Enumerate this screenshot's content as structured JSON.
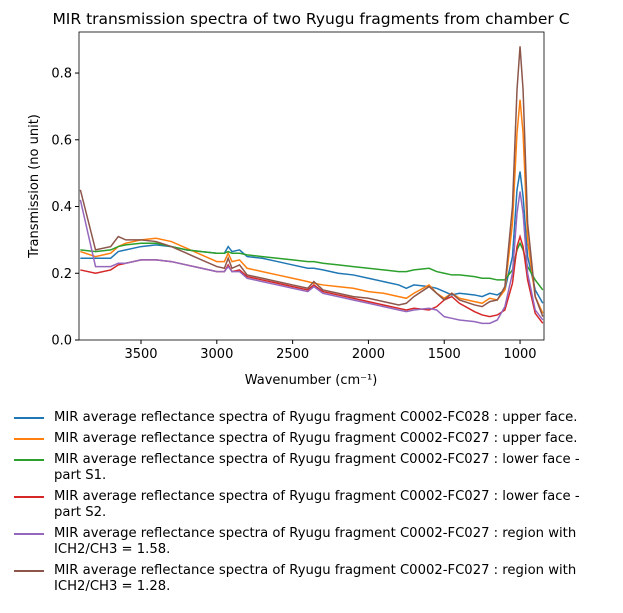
{
  "chart_data": {
    "type": "line",
    "title": "MIR transmission spectra of two Ryugu fragments from chamber C",
    "x_label": "Wavenumber (cm⁻¹)",
    "y_label": "Transmission (no unit)",
    "x": [
      3900,
      3800,
      3700,
      3650,
      3600,
      3500,
      3400,
      3300,
      3200,
      3100,
      3000,
      2950,
      2925,
      2900,
      2850,
      2800,
      2700,
      2600,
      2500,
      2400,
      2360,
      2300,
      2200,
      2100,
      2000,
      1900,
      1800,
      1750,
      1700,
      1600,
      1550,
      1500,
      1450,
      1400,
      1300,
      1250,
      1200,
      1150,
      1100,
      1050,
      1020,
      1000,
      980,
      950,
      900,
      850
    ],
    "xlim": [
      3909,
      842
    ],
    "xticks": [
      3500,
      3000,
      2500,
      2000,
      1500,
      1000
    ],
    "ylim": [
      0,
      0.923
    ],
    "yticks": [
      {
        "value": 0,
        "label": "0.0"
      },
      0.2,
      0.4,
      0.6,
      0.8
    ],
    "series": [
      {
        "name": "MIR average reflectance spectra of Ryugu fragment C0002-FC028 : upper face.",
        "color": "#1f77b4",
        "values": [
          0.245,
          0.245,
          0.245,
          0.265,
          0.27,
          0.28,
          0.285,
          0.28,
          0.27,
          0.265,
          0.26,
          0.26,
          0.28,
          0.265,
          0.27,
          0.25,
          0.245,
          0.235,
          0.225,
          0.215,
          0.215,
          0.21,
          0.2,
          0.195,
          0.185,
          0.175,
          0.165,
          0.155,
          0.165,
          0.16,
          0.155,
          0.145,
          0.135,
          0.14,
          0.135,
          0.13,
          0.14,
          0.135,
          0.15,
          0.25,
          0.45,
          0.505,
          0.43,
          0.25,
          0.15,
          0.11
        ]
      },
      {
        "name": "MIR average reflectance spectra of Ryugu fragment C0002-FC027 : upper face.",
        "color": "#ff7f0e",
        "values": [
          0.265,
          0.25,
          0.26,
          0.28,
          0.29,
          0.3,
          0.305,
          0.295,
          0.275,
          0.255,
          0.235,
          0.235,
          0.26,
          0.235,
          0.24,
          0.215,
          0.205,
          0.195,
          0.185,
          0.175,
          0.17,
          0.165,
          0.16,
          0.155,
          0.145,
          0.14,
          0.13,
          0.125,
          0.14,
          0.165,
          0.14,
          0.125,
          0.14,
          0.125,
          0.115,
          0.11,
          0.125,
          0.12,
          0.15,
          0.35,
          0.62,
          0.72,
          0.62,
          0.3,
          0.13,
          0.08
        ]
      },
      {
        "name": "MIR average reflectance spectra of Ryugu fragment C0002-FC027 : lower face - part S1.",
        "color": "#2ca02c",
        "values": [
          0.27,
          0.265,
          0.27,
          0.28,
          0.285,
          0.29,
          0.29,
          0.28,
          0.27,
          0.265,
          0.26,
          0.26,
          0.265,
          0.26,
          0.26,
          0.255,
          0.25,
          0.245,
          0.24,
          0.235,
          0.235,
          0.23,
          0.225,
          0.22,
          0.215,
          0.21,
          0.205,
          0.205,
          0.21,
          0.215,
          0.205,
          0.2,
          0.195,
          0.195,
          0.19,
          0.185,
          0.185,
          0.18,
          0.18,
          0.21,
          0.27,
          0.29,
          0.27,
          0.22,
          0.18,
          0.15
        ]
      },
      {
        "name": "MIR average reflectance spectra of Ryugu fragment C0002-FC027 : lower face - part S2.",
        "color": "#d62728",
        "values": [
          0.21,
          0.2,
          0.21,
          0.225,
          0.23,
          0.24,
          0.24,
          0.235,
          0.225,
          0.215,
          0.205,
          0.205,
          0.225,
          0.205,
          0.21,
          0.19,
          0.18,
          0.17,
          0.16,
          0.15,
          0.165,
          0.145,
          0.135,
          0.125,
          0.115,
          0.105,
          0.095,
          0.09,
          0.095,
          0.09,
          0.1,
          0.12,
          0.13,
          0.11,
          0.085,
          0.075,
          0.07,
          0.075,
          0.09,
          0.17,
          0.28,
          0.31,
          0.28,
          0.18,
          0.08,
          0.05
        ]
      },
      {
        "name": "MIR average reflectance spectra of Ryugu fragment C0002-FC027 : region with ICH2/CH3 = 1.58.",
        "color": "#9467bd",
        "values": [
          0.42,
          0.22,
          0.22,
          0.23,
          0.23,
          0.24,
          0.24,
          0.235,
          0.225,
          0.215,
          0.205,
          0.205,
          0.22,
          0.205,
          0.205,
          0.185,
          0.175,
          0.165,
          0.155,
          0.145,
          0.16,
          0.14,
          0.13,
          0.12,
          0.11,
          0.1,
          0.09,
          0.085,
          0.09,
          0.095,
          0.09,
          0.07,
          0.065,
          0.06,
          0.055,
          0.05,
          0.05,
          0.06,
          0.1,
          0.2,
          0.38,
          0.445,
          0.38,
          0.2,
          0.09,
          0.06
        ]
      },
      {
        "name": "MIR average reflectance spectra of Ryugu fragment C0002-FC027 : region with ICH2/CH3 = 1.28.",
        "color": "#8c564b",
        "values": [
          0.45,
          0.27,
          0.28,
          0.31,
          0.3,
          0.3,
          0.295,
          0.28,
          0.26,
          0.24,
          0.22,
          0.215,
          0.245,
          0.215,
          0.225,
          0.195,
          0.185,
          0.175,
          0.165,
          0.155,
          0.175,
          0.15,
          0.14,
          0.13,
          0.125,
          0.115,
          0.105,
          0.11,
          0.13,
          0.16,
          0.14,
          0.12,
          0.14,
          0.12,
          0.105,
          0.1,
          0.115,
          0.12,
          0.16,
          0.4,
          0.75,
          0.88,
          0.75,
          0.35,
          0.13,
          0.07
        ]
      }
    ]
  }
}
